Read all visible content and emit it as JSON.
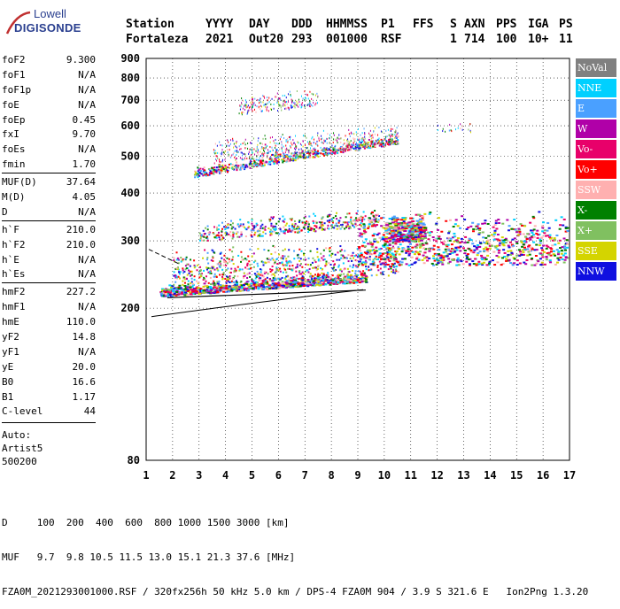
{
  "logo": {
    "line1": "Lowell",
    "line2": "DIGISONDE"
  },
  "header": {
    "labels": [
      "Station",
      "YYYY",
      "DAY",
      "DDD",
      "HHMMSS",
      "P1",
      "FFS",
      "S",
      "AXN",
      "PPS",
      "IGA",
      "PS"
    ],
    "values": [
      "Fortaleza",
      "2021",
      "Out20",
      "293",
      "001000",
      "RSF",
      "1",
      "714",
      "100",
      "10+",
      "11"
    ]
  },
  "params": {
    "group1": [
      {
        "label": "foF2",
        "value": "9.300"
      },
      {
        "label": "foF1",
        "value": "N/A"
      },
      {
        "label": "foF1p",
        "value": "N/A"
      },
      {
        "label": "foE",
        "value": "N/A"
      },
      {
        "label": "foEp",
        "value": "0.45"
      },
      {
        "label": "fxI",
        "value": "9.70"
      },
      {
        "label": "foEs",
        "value": "N/A"
      },
      {
        "label": "fmin",
        "value": "1.70"
      }
    ],
    "group2": [
      {
        "label": "MUF(D)",
        "value": "37.64"
      },
      {
        "label": "M(D)",
        "value": "4.05"
      },
      {
        "label": "D",
        "value": "N/A"
      }
    ],
    "group3": [
      {
        "label": "h`F",
        "value": "210.0"
      },
      {
        "label": "h`F2",
        "value": "210.0"
      },
      {
        "label": "h`E",
        "value": "N/A"
      },
      {
        "label": "h`Es",
        "value": "N/A"
      }
    ],
    "group4": [
      {
        "label": "hmF2",
        "value": "227.2"
      },
      {
        "label": "hmF1",
        "value": "N/A"
      },
      {
        "label": "hmE",
        "value": "110.0"
      },
      {
        "label": "yF2",
        "value": "14.8"
      },
      {
        "label": "yF1",
        "value": "N/A"
      },
      {
        "label": "yE",
        "value": "20.0"
      },
      {
        "label": "B0",
        "value": "16.6"
      },
      {
        "label": "B1",
        "value": "1.17"
      }
    ],
    "clevel": {
      "label": "C-level",
      "value": "44"
    },
    "auto": [
      "Auto:",
      "Artist5",
      "500200"
    ]
  },
  "legend": [
    {
      "label": "NoVal",
      "color": "#808080"
    },
    {
      "label": "NNE",
      "color": "#00d0ff"
    },
    {
      "label": "E",
      "color": "#4aa0ff"
    },
    {
      "label": "W",
      "color": "#b000a8"
    },
    {
      "label": "Vo-",
      "color": "#e8006a"
    },
    {
      "label": "Vo+",
      "color": "#ff0000"
    },
    {
      "label": "SSW",
      "color": "#ffb0b0"
    },
    {
      "label": "X-",
      "color": "#008000"
    },
    {
      "label": "X+",
      "color": "#80c060"
    },
    {
      "label": "SSE",
      "color": "#d4d400"
    },
    {
      "label": "NNW",
      "color": "#1010e0"
    }
  ],
  "footer": {
    "d_row": "D     100  200  400  600  800 1000 1500 3000 [km]",
    "muf_row": "MUF   9.7  9.8 10.5 11.5 13.0 15.1 21.3 37.6 [MHz]",
    "file_row": "FZA0M_2021293001000.RSF / 320fx256h 50 kHz 5.0 km / DPS-4 FZA0M 904 / 3.9 S 321.6 E   Ion2Png 1.3.20"
  },
  "chart_data": {
    "type": "scatter",
    "xlabel": "",
    "ylabel": "",
    "xlim": [
      1,
      17
    ],
    "ylim": [
      80,
      900
    ],
    "x_ticks": [
      1,
      2,
      3,
      4,
      5,
      6,
      7,
      8,
      9,
      10,
      11,
      12,
      13,
      14,
      15,
      16,
      17
    ],
    "y_ticks": [
      80,
      200,
      300,
      400,
      500,
      600,
      700,
      800,
      900
    ],
    "y_scale": "log",
    "grid": true,
    "legend_position": "right"
  }
}
